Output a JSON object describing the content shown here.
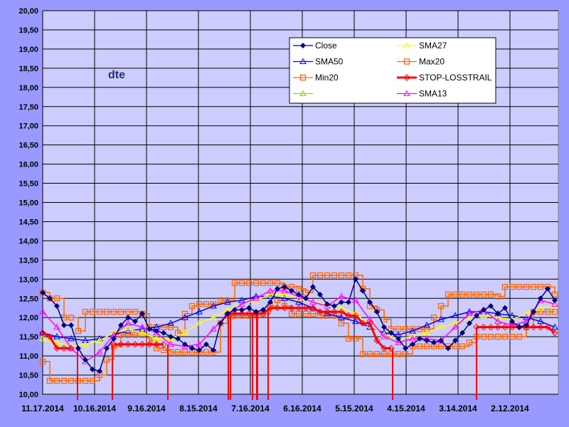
{
  "chart_data": {
    "type": "line",
    "title": "dte",
    "ylim": [
      10,
      20
    ],
    "y_ticks": [
      "10,00",
      "10,50",
      "11,00",
      "11,50",
      "12,00",
      "12,50",
      "13,00",
      "13,50",
      "14,00",
      "14,50",
      "15,00",
      "15,50",
      "16,00",
      "16,50",
      "17,00",
      "17,50",
      "18,00",
      "18,50",
      "19,00",
      "19,50",
      "20,00"
    ],
    "x_tick_labels": [
      "11.17.2014",
      "10.16.2014",
      "9.16.2014",
      "8.15.2014",
      "7.16.2014",
      "6.16.2014",
      "5.15.2014",
      "4.15.2014",
      "3.14.2014",
      "2.12.2014"
    ],
    "x_order": "dates descending left to right",
    "grid": true,
    "legend_placement": "top-right",
    "colors": {
      "background": "#9999FF",
      "plot": "#CCCCFF"
    },
    "series": [
      {
        "name": "Close",
        "color": "#000080",
        "marker": "diamond",
        "values": [
          12.65,
          12.5,
          12.3,
          11.8,
          11.8,
          11.2,
          10.9,
          10.65,
          10.6,
          11.2,
          11.45,
          11.8,
          12.0,
          11.9,
          12.1,
          11.7,
          11.65,
          11.6,
          11.5,
          11.45,
          11.3,
          11.2,
          11.15,
          11.3,
          11.15,
          11.85,
          12.1,
          12.2,
          12.2,
          12.25,
          12.15,
          12.2,
          12.4,
          12.75,
          12.8,
          12.7,
          12.6,
          12.5,
          12.8,
          12.6,
          12.35,
          12.3,
          12.4,
          12.4,
          13.0,
          12.7,
          12.4,
          12.15,
          11.75,
          11.6,
          11.45,
          11.2,
          11.3,
          11.45,
          11.4,
          11.35,
          11.4,
          11.2,
          11.4,
          11.6,
          11.85,
          12.05,
          12.2,
          12.3,
          12.1,
          12.25,
          11.9,
          11.75,
          11.8,
          12.15,
          12.5,
          12.75,
          12.45
        ]
      },
      {
        "name": "SMA50",
        "color": "#0000FF",
        "marker": "triangle",
        "values": [
          11.6,
          11.5,
          11.45,
          11.4,
          11.45,
          11.55,
          11.65,
          11.7,
          11.75,
          11.85,
          12.0,
          12.15,
          12.3,
          12.4,
          12.45,
          12.55,
          12.55,
          12.5,
          12.4,
          12.25,
          12.1,
          12.0,
          11.9,
          11.75,
          11.6,
          11.55,
          11.65,
          11.8,
          11.95,
          12.05,
          12.15,
          12.15,
          12.1,
          12.05,
          12.0,
          11.9,
          11.75
        ]
      },
      {
        "name": "Min20",
        "color": "#FF6600",
        "marker": "square",
        "values": [
          10.85,
          10.35,
          10.35,
          10.35,
          10.35,
          10.35,
          10.35,
          10.35,
          10.5,
          10.9,
          11.25,
          11.55,
          11.55,
          11.55,
          11.55,
          11.4,
          11.2,
          11.15,
          11.1,
          11.1,
          11.1,
          11.1,
          11.1,
          11.1,
          11.1,
          11.85,
          12.05,
          12.05,
          12.05,
          12.05,
          12.1,
          12.1,
          12.3,
          12.45,
          12.3,
          12.1,
          12.1,
          12.1,
          12.1,
          12.05,
          12.05,
          12.05,
          11.85,
          11.45,
          11.45,
          11.05,
          11.05,
          11.05,
          11.05,
          11.05,
          11.05,
          11.05,
          11.25,
          11.25,
          11.25,
          11.25,
          11.25,
          11.25,
          11.25,
          11.25,
          11.35,
          11.5,
          11.5,
          11.5,
          11.5,
          11.5,
          11.5,
          11.5,
          11.75,
          12.15,
          12.15,
          12.15,
          12.15
        ]
      },
      {
        "name": "",
        "color": "#99CC00",
        "marker": "triangle",
        "values": []
      },
      {
        "name": "SMA27",
        "color": "#FFFF00",
        "marker": "triangle",
        "values": [
          11.45,
          11.35,
          11.25,
          11.3,
          11.4,
          11.6,
          11.7,
          11.6,
          11.45,
          11.45,
          11.6,
          11.85,
          12.0,
          12.2,
          12.35,
          12.45,
          12.6,
          12.6,
          12.5,
          12.4,
          12.35,
          12.25,
          12.1,
          11.8,
          11.55,
          11.45,
          11.5,
          11.6,
          11.75,
          11.85,
          12.0,
          12.05,
          12.0,
          11.95,
          12.1,
          12.25,
          12.3
        ]
      },
      {
        "name": "Max20",
        "color": "#FF6600",
        "marker": "square",
        "values": [
          12.65,
          12.5,
          12.5,
          12.0,
          12.0,
          11.65,
          12.15,
          12.15,
          12.15,
          12.15,
          12.15,
          12.15,
          12.15,
          12.15,
          12.1,
          11.75,
          11.75,
          11.75,
          11.75,
          11.6,
          12.1,
          12.3,
          12.35,
          12.35,
          12.35,
          12.45,
          12.45,
          12.9,
          12.9,
          12.9,
          12.9,
          12.9,
          12.9,
          12.9,
          12.8,
          12.8,
          12.75,
          12.65,
          13.1,
          13.1,
          13.1,
          13.1,
          13.1,
          13.1,
          13.1,
          12.75,
          12.3,
          12.2,
          11.95,
          11.7,
          11.7,
          11.7,
          11.7,
          11.7,
          11.7,
          12.0,
          12.3,
          12.6,
          12.6,
          12.6,
          12.6,
          12.6,
          12.6,
          12.6,
          12.55,
          12.8,
          12.8,
          12.8,
          12.8,
          12.8,
          12.8,
          12.8,
          12.6
        ]
      },
      {
        "name": "STOP-LOSSTRAIL",
        "color": "#FF0000",
        "marker": "diamond-open",
        "values": [
          11.6,
          11.5,
          11.2,
          11.2,
          11.2,
          null,
          null,
          null,
          null,
          null,
          11.3,
          11.3,
          11.3,
          11.3,
          11.3,
          11.3,
          11.3,
          11.3,
          null,
          null,
          null,
          null,
          null,
          null,
          null,
          null,
          12.1,
          12.1,
          12.1,
          12.1,
          12.1,
          12.1,
          12.25,
          12.25,
          12.25,
          12.25,
          12.25,
          12.25,
          12.25,
          12.15,
          12.15,
          12.15,
          12.15,
          12.05,
          12.05,
          11.85,
          11.85,
          11.4,
          11.2,
          11.2,
          null,
          null,
          null,
          null,
          null,
          null,
          null,
          null,
          null,
          null,
          null,
          11.75,
          11.75,
          11.75,
          11.75,
          11.75,
          11.75,
          11.75,
          11.75,
          11.75,
          11.75,
          11.75,
          11.6
        ],
        "signal_sample_index": [
          4.9,
          9.8,
          17.6,
          26.1,
          26.4,
          29.5,
          30.1,
          30.2,
          31.7,
          49.2,
          61.0
        ]
      },
      {
        "name": "SMA13",
        "color": "#FF00FF",
        "marker": "triangle",
        "values": [
          12.15,
          11.75,
          11.2,
          10.85,
          11.1,
          11.55,
          11.85,
          11.75,
          11.6,
          11.3,
          11.25,
          11.3,
          11.7,
          12.1,
          12.35,
          12.5,
          12.7,
          12.7,
          12.55,
          12.4,
          12.3,
          12.55,
          12.45,
          11.95,
          11.5,
          11.35,
          11.45,
          11.45,
          11.4,
          11.75,
          12.1,
          12.2,
          11.9,
          11.8,
          11.9,
          12.45,
          12.35
        ]
      }
    ]
  }
}
